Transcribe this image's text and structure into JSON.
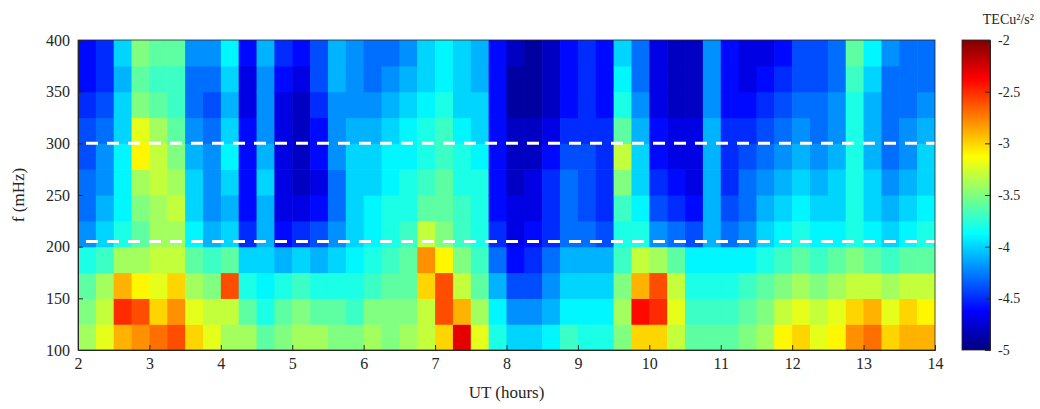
{
  "chart_data": {
    "type": "heatmap",
    "x_label": "UT (hours)",
    "y_label": "f (mHz)",
    "xlim": [
      2,
      14
    ],
    "xticks": [
      2,
      3,
      4,
      5,
      6,
      7,
      8,
      9,
      10,
      11,
      12,
      13,
      14
    ],
    "ylim": [
      100,
      400
    ],
    "yticks": [
      100,
      150,
      200,
      250,
      300,
      350,
      400
    ],
    "x_edges": [
      2,
      2.25,
      2.5,
      2.75,
      3,
      3.25,
      3.5,
      3.75,
      4,
      4.25,
      4.5,
      4.75,
      5,
      5.25,
      5.5,
      5.75,
      6,
      6.25,
      6.5,
      6.75,
      7,
      7.25,
      7.5,
      7.75,
      8,
      8.25,
      8.5,
      8.75,
      9,
      9.25,
      9.5,
      9.75,
      10,
      10.25,
      10.5,
      10.75,
      11,
      11.25,
      11.5,
      11.75,
      12,
      12.25,
      12.5,
      12.75,
      13,
      13.25,
      13.5,
      13.75,
      14
    ],
    "y_edges": [
      100,
      125,
      150,
      175,
      200,
      225,
      250,
      275,
      300,
      325,
      350,
      375,
      400
    ],
    "z": [
      [
        -3.4,
        -3.5,
        -3.6,
        -3.8,
        -4.2,
        -4.3,
        -4.3,
        -4.4,
        -4.4,
        -4.5,
        -4.6,
        -4.6
      ],
      [
        -3.2,
        -3.3,
        -3.4,
        -3.7,
        -4.0,
        -4.1,
        -4.2,
        -4.2,
        -4.3,
        -4.4,
        -4.5,
        -4.5
      ],
      [
        -2.9,
        -2.5,
        -2.9,
        -3.4,
        -3.8,
        -3.9,
        -3.9,
        -3.9,
        -4.0,
        -4.0,
        -4.1,
        -4.0
      ],
      [
        -2.8,
        -2.6,
        -3.1,
        -3.4,
        -3.6,
        -3.5,
        -3.4,
        -3.1,
        -3.2,
        -3.5,
        -3.6,
        -3.5
      ],
      [
        -2.7,
        -3.0,
        -3.2,
        -3.3,
        -3.4,
        -3.4,
        -3.3,
        -3.3,
        -3.4,
        -3.6,
        -3.7,
        -3.6
      ],
      [
        -2.6,
        -2.8,
        -3.0,
        -3.3,
        -3.4,
        -3.3,
        -3.4,
        -3.5,
        -3.6,
        -3.7,
        -3.7,
        -3.6
      ],
      [
        -3.0,
        -3.2,
        -3.4,
        -3.6,
        -3.9,
        -4.0,
        -4.0,
        -4.1,
        -4.2,
        -4.3,
        -4.3,
        -4.2
      ],
      [
        -3.2,
        -3.3,
        -3.5,
        -3.7,
        -4.1,
        -4.2,
        -4.2,
        -4.2,
        -4.3,
        -4.4,
        -4.3,
        -4.2
      ],
      [
        -3.4,
        -3.3,
        -2.6,
        -3.6,
        -4.0,
        -4.1,
        -4.0,
        -3.9,
        -4.0,
        -4.1,
        -4.0,
        -3.9
      ],
      [
        -3.4,
        -3.6,
        -3.8,
        -4.0,
        -4.5,
        -4.6,
        -4.6,
        -4.6,
        -4.6,
        -4.7,
        -4.7,
        -4.6
      ],
      [
        -3.6,
        -3.8,
        -3.9,
        -4.0,
        -4.1,
        -4.1,
        -4.0,
        -4.1,
        -4.2,
        -4.2,
        -4.2,
        -4.1
      ],
      [
        -3.5,
        -3.6,
        -3.8,
        -4.1,
        -4.6,
        -4.7,
        -4.7,
        -4.7,
        -4.7,
        -4.7,
        -4.6,
        -4.5
      ],
      [
        -3.4,
        -3.5,
        -3.7,
        -4.0,
        -4.5,
        -4.7,
        -4.8,
        -4.8,
        -4.8,
        -4.8,
        -4.7,
        -4.6
      ],
      [
        -3.4,
        -3.6,
        -3.8,
        -4.1,
        -4.4,
        -4.6,
        -4.7,
        -4.6,
        -4.6,
        -4.5,
        -4.4,
        -4.4
      ],
      [
        -3.5,
        -3.6,
        -3.8,
        -4.0,
        -4.2,
        -4.3,
        -4.3,
        -4.2,
        -4.2,
        -4.2,
        -4.1,
        -4.1
      ],
      [
        -3.5,
        -3.7,
        -3.8,
        -3.9,
        -4.0,
        -4.0,
        -4.0,
        -4.0,
        -4.1,
        -4.2,
        -4.2,
        -4.2
      ],
      [
        -3.4,
        -3.5,
        -3.7,
        -3.8,
        -3.9,
        -3.9,
        -4.0,
        -4.0,
        -4.1,
        -4.2,
        -4.3,
        -4.3
      ],
      [
        -3.5,
        -3.5,
        -3.6,
        -3.7,
        -3.8,
        -3.8,
        -3.9,
        -3.9,
        -4.0,
        -4.1,
        -4.2,
        -4.3
      ],
      [
        -3.4,
        -3.5,
        -3.6,
        -3.6,
        -3.7,
        -3.8,
        -3.8,
        -3.9,
        -3.9,
        -4.0,
        -4.1,
        -4.2
      ],
      [
        -3.3,
        -3.3,
        -3.0,
        -2.8,
        -3.3,
        -3.6,
        -3.7,
        -3.8,
        -3.8,
        -3.9,
        -4.0,
        -4.0
      ],
      [
        -3.0,
        -2.6,
        -2.6,
        -3.1,
        -3.5,
        -3.6,
        -3.6,
        -3.7,
        -3.7,
        -3.8,
        -3.9,
        -3.9
      ],
      [
        -2.3,
        -2.9,
        -3.3,
        -3.5,
        -3.7,
        -3.7,
        -3.8,
        -3.8,
        -3.9,
        -4.0,
        -4.0,
        -4.0
      ],
      [
        -3.2,
        -3.4,
        -3.6,
        -3.7,
        -3.8,
        -3.8,
        -3.8,
        -3.9,
        -4.0,
        -4.0,
        -4.1,
        -4.1
      ],
      [
        -3.8,
        -3.9,
        -4.1,
        -4.3,
        -4.5,
        -4.6,
        -4.6,
        -4.6,
        -4.6,
        -4.6,
        -4.6,
        -4.6
      ],
      [
        -4.0,
        -4.2,
        -4.4,
        -4.6,
        -4.7,
        -4.7,
        -4.8,
        -4.8,
        -4.8,
        -4.9,
        -4.9,
        -4.8
      ],
      [
        -4.0,
        -4.2,
        -4.4,
        -4.5,
        -4.6,
        -4.7,
        -4.7,
        -4.8,
        -4.8,
        -4.9,
        -4.9,
        -4.9
      ],
      [
        -3.9,
        -4.1,
        -4.2,
        -4.3,
        -4.5,
        -4.5,
        -4.5,
        -4.6,
        -4.7,
        -4.8,
        -4.8,
        -4.8
      ],
      [
        -3.7,
        -3.9,
        -4.0,
        -4.1,
        -4.3,
        -4.3,
        -4.3,
        -4.4,
        -4.5,
        -4.6,
        -4.6,
        -4.6
      ],
      [
        -3.8,
        -3.9,
        -4.0,
        -4.1,
        -4.3,
        -4.4,
        -4.4,
        -4.4,
        -4.5,
        -4.5,
        -4.5,
        -4.5
      ],
      [
        -3.8,
        -3.9,
        -4.0,
        -4.1,
        -4.4,
        -4.5,
        -4.5,
        -4.5,
        -4.5,
        -4.6,
        -4.6,
        -4.6
      ],
      [
        -3.5,
        -3.4,
        -3.5,
        -3.7,
        -3.8,
        -3.7,
        -3.5,
        -3.3,
        -3.6,
        -3.8,
        -3.9,
        -4.0
      ],
      [
        -3.0,
        -2.4,
        -2.9,
        -3.3,
        -3.8,
        -3.9,
        -4.0,
        -4.0,
        -4.1,
        -4.2,
        -4.3,
        -4.3
      ],
      [
        -3.0,
        -2.5,
        -2.6,
        -3.4,
        -4.2,
        -4.4,
        -4.5,
        -4.6,
        -4.6,
        -4.7,
        -4.7,
        -4.7
      ],
      [
        -3.3,
        -3.2,
        -3.3,
        -3.6,
        -4.3,
        -4.5,
        -4.6,
        -4.7,
        -4.7,
        -4.8,
        -4.8,
        -4.8
      ],
      [
        -3.6,
        -3.7,
        -3.8,
        -3.9,
        -4.4,
        -4.6,
        -4.7,
        -4.7,
        -4.7,
        -4.8,
        -4.8,
        -4.8
      ],
      [
        -3.6,
        -3.7,
        -3.8,
        -3.9,
        -4.1,
        -4.1,
        -4.1,
        -4.1,
        -4.1,
        -4.2,
        -4.2,
        -4.2
      ],
      [
        -3.6,
        -3.7,
        -3.8,
        -3.9,
        -4.3,
        -4.4,
        -4.5,
        -4.5,
        -4.5,
        -4.6,
        -4.6,
        -4.6
      ],
      [
        -3.5,
        -3.6,
        -3.7,
        -3.9,
        -4.2,
        -4.3,
        -4.3,
        -4.4,
        -4.5,
        -4.6,
        -4.7,
        -4.7
      ],
      [
        -3.4,
        -3.5,
        -3.6,
        -3.8,
        -4.0,
        -4.1,
        -4.2,
        -4.3,
        -4.4,
        -4.5,
        -4.6,
        -4.7
      ],
      [
        -3.1,
        -3.3,
        -3.5,
        -3.7,
        -3.9,
        -4.0,
        -4.1,
        -4.2,
        -4.3,
        -4.4,
        -4.5,
        -4.6
      ],
      [
        -3.0,
        -3.2,
        -3.4,
        -3.6,
        -3.8,
        -3.9,
        -4.0,
        -4.1,
        -4.2,
        -4.3,
        -4.4,
        -4.4
      ],
      [
        -3.2,
        -3.3,
        -3.5,
        -3.7,
        -3.9,
        -4.0,
        -4.1,
        -4.2,
        -4.3,
        -4.3,
        -4.4,
        -4.4
      ],
      [
        -3.1,
        -3.2,
        -3.4,
        -3.6,
        -3.9,
        -4.0,
        -4.0,
        -4.1,
        -4.2,
        -4.2,
        -4.3,
        -4.3
      ],
      [
        -2.8,
        -3.0,
        -3.3,
        -3.5,
        -3.8,
        -3.8,
        -3.8,
        -3.8,
        -3.8,
        -3.8,
        -3.7,
        -3.6
      ],
      [
        -2.7,
        -2.9,
        -3.3,
        -3.6,
        -3.9,
        -4.0,
        -4.0,
        -4.1,
        -4.1,
        -4.1,
        -4.0,
        -3.9
      ],
      [
        -3.0,
        -3.2,
        -3.4,
        -3.7,
        -4.0,
        -4.1,
        -4.2,
        -4.3,
        -4.3,
        -4.3,
        -4.3,
        -4.2
      ],
      [
        -2.9,
        -3.0,
        -3.3,
        -3.6,
        -3.9,
        -4.0,
        -4.1,
        -4.2,
        -4.2,
        -4.3,
        -4.3,
        -4.3
      ],
      [
        -2.9,
        -3.1,
        -3.3,
        -3.6,
        -3.8,
        -3.9,
        -4.0,
        -4.0,
        -4.1,
        -4.2,
        -4.3,
        -4.3
      ]
    ],
    "reference_lines": [
      300,
      205
    ],
    "colorbar": {
      "label": "TECu²/s²",
      "range": [
        -5,
        -2
      ],
      "ticks": [
        -2,
        -2.5,
        -3,
        -3.5,
        -4,
        -4.5,
        -5
      ]
    }
  }
}
